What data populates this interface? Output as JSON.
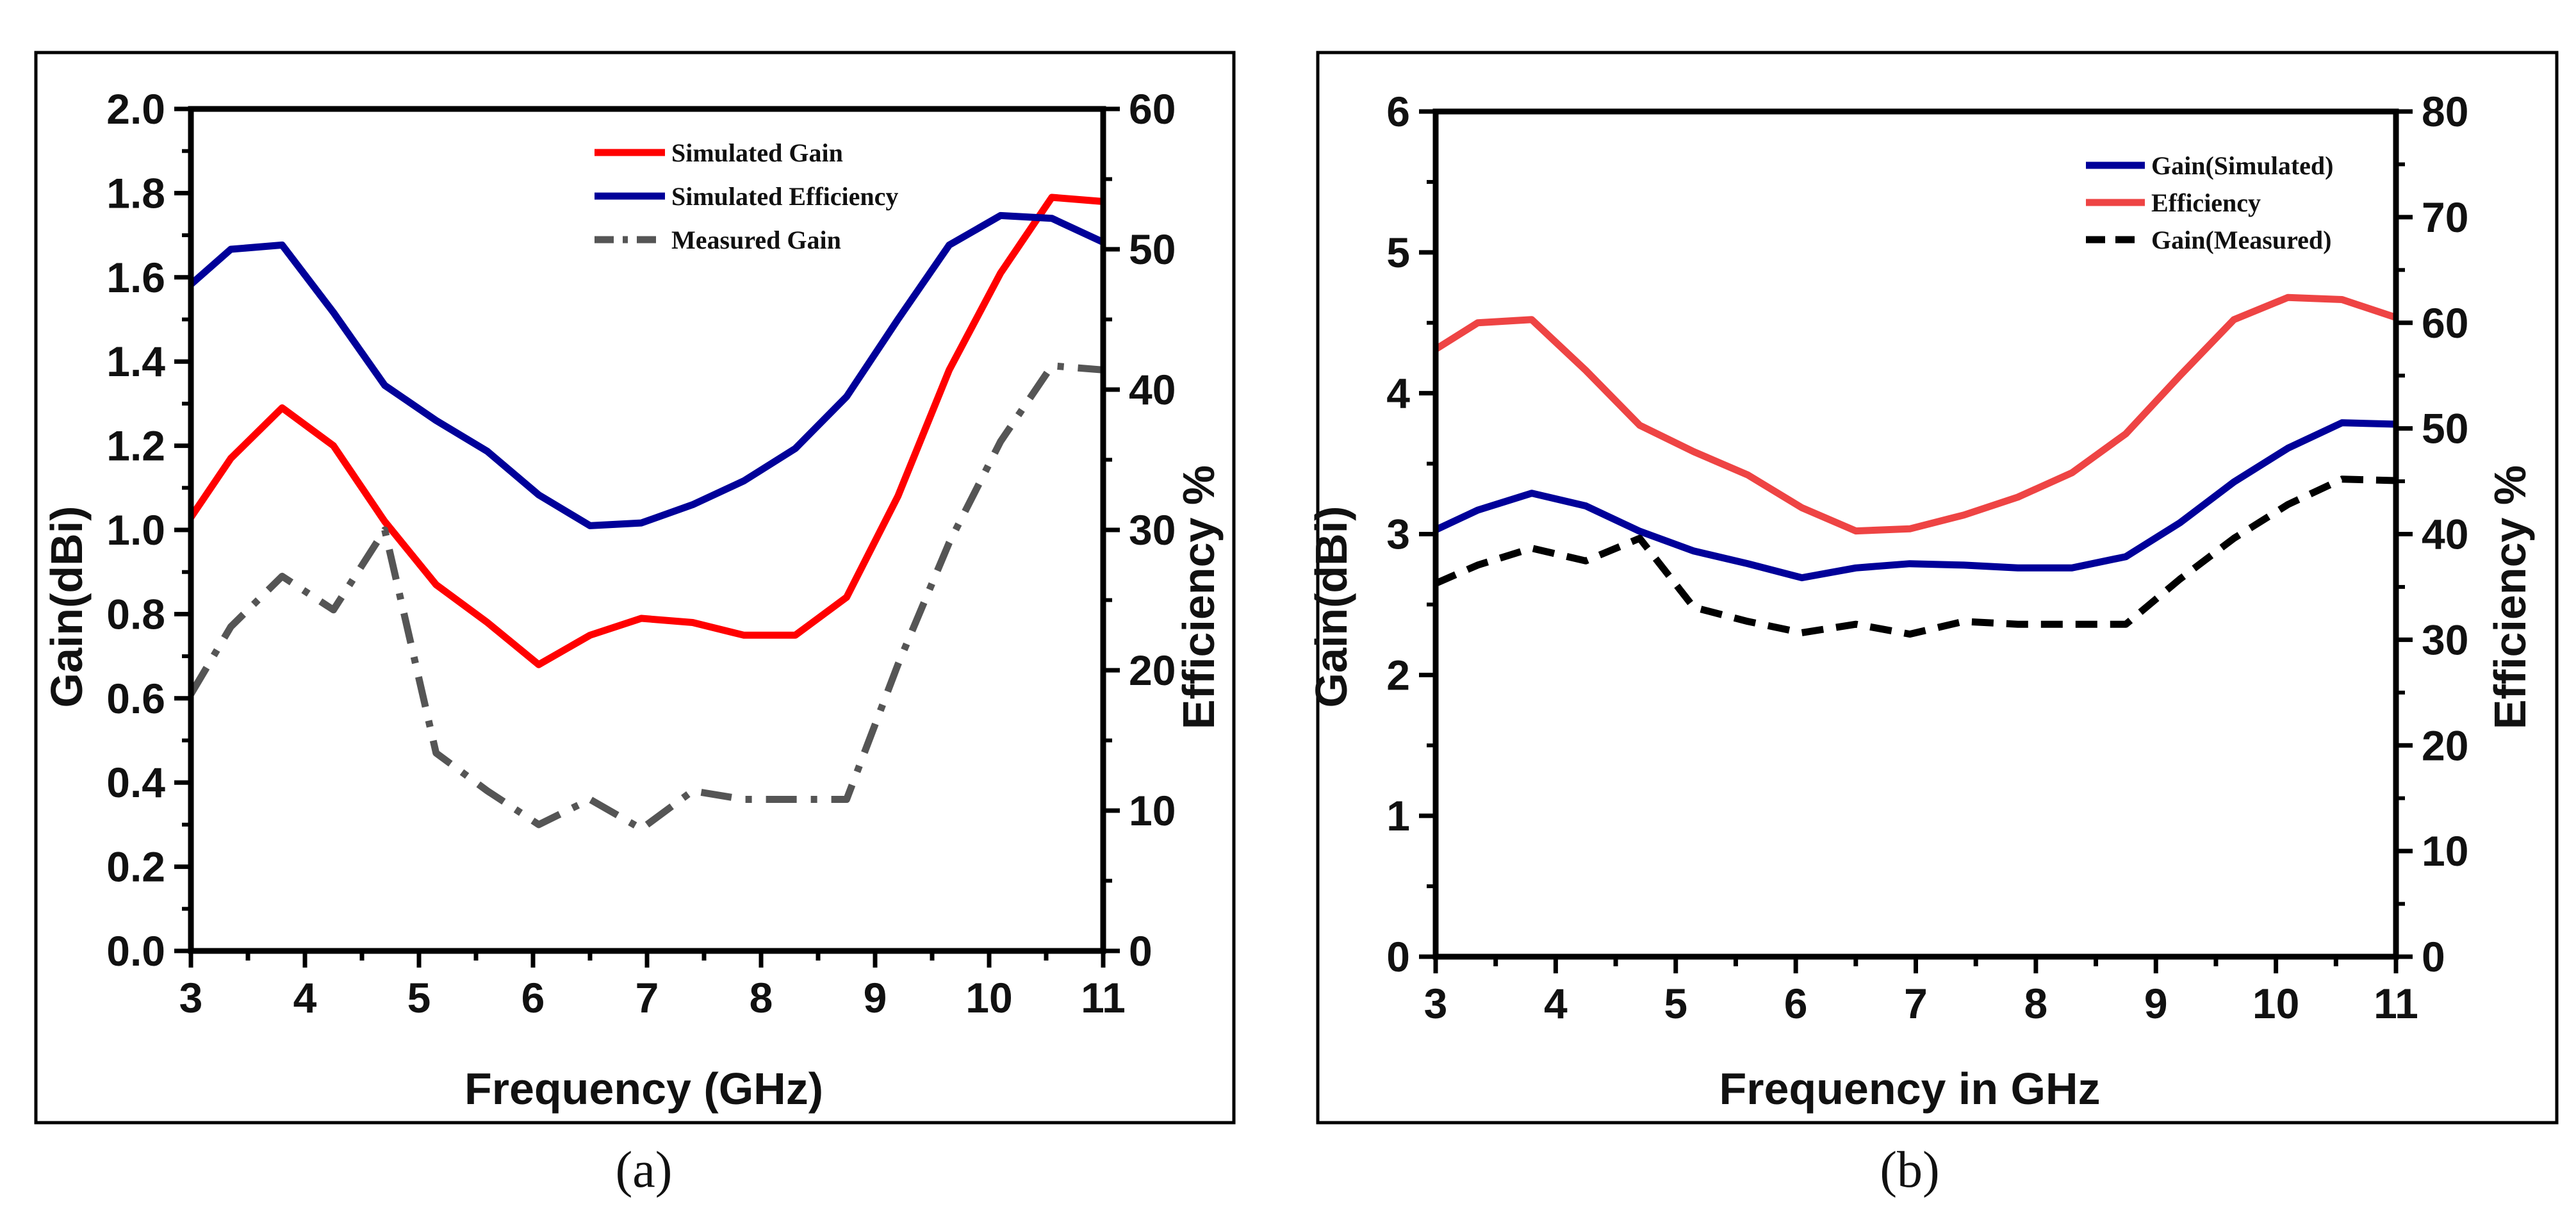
{
  "chart_data": [
    {
      "type": "line",
      "caption": "(a)",
      "xlabel": "Frequency (GHz)",
      "ylabel": "Gain(dBi)",
      "y2label": "Efficiency %",
      "xlim": [
        3,
        11
      ],
      "ylim": [
        0,
        2
      ],
      "y2lim": [
        0,
        60
      ],
      "xticks": [
        3,
        4,
        5,
        6,
        7,
        8,
        9,
        10,
        11
      ],
      "yticks": [
        "0.0",
        "0.2",
        "0.4",
        "0.6",
        "0.8",
        "1.0",
        "1.2",
        "1.4",
        "1.6",
        "1.8",
        "2.0"
      ],
      "y2ticks": [
        0,
        10,
        20,
        30,
        40,
        50,
        60
      ],
      "legend_position": "top-right",
      "series": [
        {
          "name": "Simulated Gain",
          "color": "#ff0000",
          "dash": "solid",
          "axis": "left",
          "x": [
            3,
            3.35,
            3.8,
            4.25,
            4.7,
            5.15,
            5.6,
            6.05,
            6.5,
            6.95,
            7.4,
            7.85,
            8.3,
            8.75,
            9.2,
            9.65,
            10.1,
            10.55,
            11
          ],
          "values": [
            1.03,
            1.17,
            1.29,
            1.2,
            1.02,
            0.87,
            0.78,
            0.68,
            0.75,
            0.79,
            0.78,
            0.75,
            0.75,
            0.84,
            1.08,
            1.38,
            1.61,
            1.79,
            1.78
          ]
        },
        {
          "name": "Simulated Efficiency",
          "color": "#000099",
          "dash": "solid",
          "axis": "right",
          "x": [
            3,
            3.35,
            3.8,
            4.25,
            4.7,
            5.15,
            5.6,
            6.05,
            6.5,
            6.95,
            7.4,
            7.85,
            8.3,
            8.75,
            9.2,
            9.65,
            10.1,
            10.55,
            11
          ],
          "values": [
            47.5,
            50,
            50.3,
            45.5,
            40.3,
            37.8,
            35.6,
            32.5,
            30.3,
            30.5,
            31.8,
            33.5,
            35.8,
            39.5,
            45,
            50.3,
            52.4,
            52.2,
            50.5
          ]
        },
        {
          "name": "Measured Gain",
          "color": "#555555",
          "dash": "dashdot",
          "axis": "left",
          "x": [
            3,
            3.35,
            3.8,
            4.25,
            4.7,
            5.15,
            5.6,
            6.05,
            6.5,
            6.95,
            7.4,
            7.85,
            8.3,
            8.75,
            9.2,
            9.65,
            10.1,
            10.55,
            11
          ],
          "values": [
            0.61,
            0.77,
            0.89,
            0.81,
            1.0,
            0.47,
            0.38,
            0.3,
            0.36,
            0.29,
            0.38,
            0.36,
            0.36,
            0.36,
            0.68,
            0.97,
            1.21,
            1.39,
            1.38
          ]
        }
      ]
    },
    {
      "type": "line",
      "caption": "(b)",
      "xlabel": "Frequency in GHz",
      "ylabel": "Gain(dBi)",
      "y2label": "Efficiency %",
      "xlim": [
        3,
        11
      ],
      "ylim": [
        0,
        6
      ],
      "y2lim": [
        0,
        80
      ],
      "xticks": [
        3,
        4,
        5,
        6,
        7,
        8,
        9,
        10,
        11
      ],
      "yticks": [
        "0",
        "1",
        "2",
        "3",
        "4",
        "5",
        "6"
      ],
      "y2ticks": [
        0,
        10,
        20,
        30,
        40,
        50,
        60,
        70,
        80
      ],
      "legend_position": "top-right",
      "series": [
        {
          "name": "Gain(Simulated)",
          "color": "#000099",
          "dash": "solid",
          "axis": "left",
          "x": [
            3,
            3.35,
            3.8,
            4.25,
            4.7,
            5.15,
            5.6,
            6.05,
            6.5,
            6.95,
            7.4,
            7.85,
            8.3,
            8.75,
            9.2,
            9.65,
            10.1,
            10.55,
            11
          ],
          "values": [
            3.03,
            3.17,
            3.29,
            3.2,
            3.02,
            2.88,
            2.79,
            2.69,
            2.76,
            2.79,
            2.78,
            2.76,
            2.76,
            2.84,
            3.08,
            3.37,
            3.61,
            3.79,
            3.78
          ]
        },
        {
          "name": "Efficiency",
          "color": "#ee4444",
          "dash": "solid",
          "axis": "right",
          "x": [
            3,
            3.35,
            3.8,
            4.25,
            4.7,
            5.15,
            5.6,
            6.05,
            6.5,
            6.95,
            7.4,
            7.85,
            8.3,
            8.75,
            9.2,
            9.65,
            10.1,
            10.55,
            11
          ],
          "values": [
            57.5,
            60,
            60.3,
            55.5,
            50.3,
            47.8,
            45.6,
            42.5,
            40.3,
            40.5,
            41.8,
            43.5,
            45.8,
            49.5,
            55,
            60.3,
            62.4,
            62.2,
            60.5
          ]
        },
        {
          "name": "Gain(Measured)",
          "color": "#000000",
          "dash": "dashed",
          "axis": "left",
          "x": [
            3,
            3.35,
            3.8,
            4.25,
            4.7,
            5.15,
            5.6,
            6.05,
            6.5,
            6.95,
            7.4,
            7.85,
            8.3,
            8.75,
            9.2,
            9.65,
            10.1,
            10.55,
            11
          ],
          "values": [
            2.65,
            2.78,
            2.9,
            2.81,
            2.97,
            2.48,
            2.38,
            2.3,
            2.36,
            2.29,
            2.38,
            2.36,
            2.36,
            2.36,
            2.68,
            2.97,
            3.21,
            3.39,
            3.38
          ]
        }
      ]
    }
  ]
}
